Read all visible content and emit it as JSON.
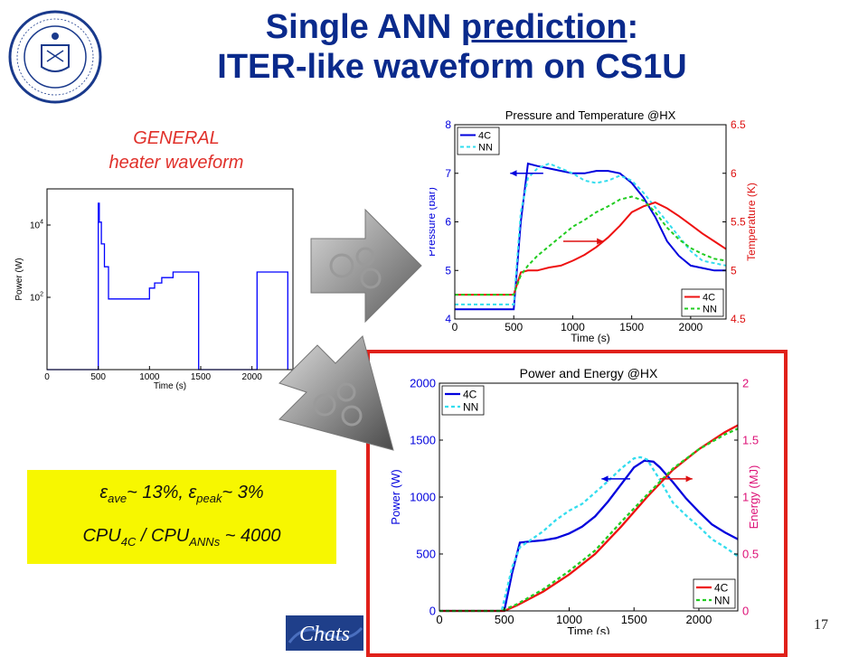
{
  "slide": {
    "title_line1_a": "Single ANN ",
    "title_line1_b": "prediction",
    "title_line1_c": ":",
    "title_line2": "ITER-like waveform on CS1U",
    "caption_line1": "GENERAL",
    "caption_line2": "heater waveform",
    "result": {
      "eps_symbol": "ε",
      "ave_sub": "ave",
      "ave_val": "~  13%, ",
      "peak_sub": "peak",
      "peak_val": "~  3%",
      "cpu": "CPU",
      "cpu_4c_sub": "4C",
      "cpu_sep": " / CPU",
      "cpu_ann_sub": "ANNs",
      "cpu_val": " ~  4000"
    },
    "footer_logo_text": "Chats",
    "page_number": "17",
    "colors": {
      "title": "#0a2a8c",
      "caption": "#e0302a",
      "frame": "#e0201a",
      "box": "#f7f700"
    }
  },
  "chart_data": [
    {
      "type": "line",
      "title": "",
      "xlabel": "Time (s)",
      "ylabel": "Power (W)",
      "xlim": [
        0,
        2400
      ],
      "ylog": true,
      "ylim": [
        1,
        100000
      ],
      "xticks": [
        "0",
        "500",
        "1000",
        "1500",
        "2000"
      ],
      "yticks": [
        "10^4",
        "10^2"
      ],
      "series": [
        {
          "color": "#0000ff",
          "x": [
            0,
            500,
            500,
            510,
            510,
            530,
            530,
            560,
            560,
            600,
            600,
            1000,
            1000,
            1050,
            1050,
            1120,
            1120,
            1230,
            1230,
            1480,
            1480,
            2050,
            2050,
            2350,
            2350
          ],
          "y": [
            1,
            1,
            40000,
            40000,
            12000,
            12000,
            3000,
            3000,
            700,
            700,
            90,
            90,
            180,
            180,
            250,
            250,
            350,
            350,
            500,
            500,
            1,
            1,
            500,
            500,
            1
          ]
        }
      ]
    },
    {
      "type": "line",
      "title": "Pressure and Temperature @HX",
      "xlabel": "Time (s)",
      "ylabel": "Pressure (bar)",
      "y2label": "Temperature (K)",
      "xlim": [
        0,
        2300
      ],
      "ylim": [
        4,
        8
      ],
      "y2lim": [
        4.5,
        6.5
      ],
      "xticks": [
        "0",
        "500",
        "1000",
        "1500",
        "2000"
      ],
      "yticks": [
        "4",
        "5",
        "6",
        "7",
        "8"
      ],
      "y2ticks": [
        "4.5",
        "5",
        "5.5",
        "6",
        "6.5"
      ],
      "legend_left": [
        "4C",
        "NN"
      ],
      "legend_right": [
        "4C",
        "NN"
      ],
      "series": [
        {
          "name": "4C",
          "axis": "left",
          "color": "#0000dd",
          "dash": false,
          "x": [
            0,
            450,
            470,
            500,
            560,
            620,
            700,
            800,
            900,
            1000,
            1100,
            1200,
            1300,
            1400,
            1500,
            1600,
            1700,
            1800,
            1900,
            2000,
            2100,
            2200,
            2300
          ],
          "y": [
            4.2,
            4.2,
            4.2,
            4.2,
            6.0,
            7.2,
            7.15,
            7.1,
            7.05,
            7.0,
            7.0,
            7.05,
            7.05,
            7.0,
            6.8,
            6.5,
            6.1,
            5.6,
            5.3,
            5.1,
            5.05,
            5.0,
            5.0
          ]
        },
        {
          "name": "NN",
          "axis": "left",
          "color": "#33ddee",
          "dash": true,
          "x": [
            0,
            450,
            500,
            560,
            620,
            700,
            800,
            900,
            1000,
            1100,
            1200,
            1300,
            1400,
            1500,
            1600,
            1700,
            1800,
            1900,
            2000,
            2100,
            2200,
            2300
          ],
          "y": [
            4.3,
            4.3,
            4.3,
            6.2,
            6.9,
            7.1,
            7.2,
            7.1,
            7.0,
            6.85,
            6.8,
            6.85,
            6.95,
            6.85,
            6.6,
            6.3,
            6.0,
            5.7,
            5.4,
            5.2,
            5.15,
            5.1
          ]
        },
        {
          "name": "4C",
          "axis": "right",
          "color": "#ee1111",
          "dash": false,
          "x": [
            0,
            450,
            500,
            560,
            620,
            700,
            800,
            900,
            1000,
            1100,
            1200,
            1300,
            1400,
            1500,
            1600,
            1700,
            1800,
            1900,
            2000,
            2100,
            2200,
            2300
          ],
          "y": [
            4.75,
            4.75,
            4.75,
            4.98,
            5.0,
            5.0,
            5.03,
            5.05,
            5.1,
            5.16,
            5.24,
            5.34,
            5.46,
            5.6,
            5.66,
            5.7,
            5.64,
            5.56,
            5.47,
            5.38,
            5.3,
            5.22
          ]
        },
        {
          "name": "NN",
          "axis": "right",
          "color": "#22cc22",
          "dash": true,
          "x": [
            0,
            450,
            500,
            560,
            620,
            700,
            800,
            900,
            1000,
            1100,
            1200,
            1300,
            1400,
            1500,
            1600,
            1700,
            1800,
            1900,
            2000,
            2100,
            2200,
            2300
          ],
          "y": [
            4.75,
            4.75,
            4.75,
            4.95,
            5.05,
            5.15,
            5.25,
            5.35,
            5.45,
            5.52,
            5.6,
            5.66,
            5.73,
            5.76,
            5.72,
            5.6,
            5.44,
            5.32,
            5.23,
            5.17,
            5.12,
            5.1
          ]
        }
      ]
    },
    {
      "type": "line",
      "title": "Power and Energy @HX",
      "xlabel": "Time (s)",
      "ylabel": "Power (W)",
      "y2label": "Energy (MJ)",
      "xlim": [
        0,
        2300
      ],
      "ylim": [
        0,
        2000
      ],
      "y2lim": [
        0,
        2
      ],
      "xticks": [
        "0",
        "500",
        "1000",
        "1500",
        "2000"
      ],
      "yticks": [
        "0",
        "500",
        "1000",
        "1500",
        "2000"
      ],
      "y2ticks": [
        "0",
        "0.5",
        "1",
        "1.5",
        "2"
      ],
      "legend_left": [
        "4C",
        "NN"
      ],
      "legend_right": [
        "4C",
        "NN"
      ],
      "series": [
        {
          "name": "4C",
          "axis": "left",
          "color": "#0000dd",
          "dash": false,
          "x": [
            0,
            500,
            560,
            620,
            700,
            800,
            900,
            1000,
            1100,
            1200,
            1300,
            1400,
            1500,
            1580,
            1650,
            1700,
            1800,
            1900,
            2000,
            2100,
            2200,
            2300
          ],
          "y": [
            0,
            0,
            330,
            600,
            610,
            620,
            640,
            680,
            740,
            830,
            960,
            1110,
            1260,
            1320,
            1310,
            1260,
            1130,
            990,
            870,
            760,
            690,
            630
          ]
        },
        {
          "name": "NN",
          "axis": "left",
          "color": "#33ddee",
          "dash": true,
          "x": [
            0,
            430,
            480,
            560,
            620,
            700,
            800,
            900,
            1000,
            1100,
            1200,
            1300,
            1400,
            1500,
            1550,
            1600,
            1700,
            1800,
            1900,
            2000,
            2100,
            2200,
            2300
          ],
          "y": [
            0,
            0,
            0,
            380,
            560,
            620,
            700,
            800,
            880,
            940,
            1040,
            1140,
            1250,
            1340,
            1350,
            1330,
            1150,
            950,
            840,
            740,
            630,
            560,
            480
          ]
        },
        {
          "name": "4C",
          "axis": "right",
          "color": "#ee1111",
          "dash": false,
          "x": [
            0,
            500,
            600,
            800,
            1000,
            1200,
            1400,
            1600,
            1800,
            2000,
            2200,
            2300
          ],
          "y": [
            0,
            0,
            0.05,
            0.17,
            0.32,
            0.5,
            0.74,
            1.0,
            1.24,
            1.42,
            1.57,
            1.63
          ]
        },
        {
          "name": "NN",
          "axis": "right",
          "color": "#22cc22",
          "dash": true,
          "x": [
            0,
            480,
            600,
            800,
            1000,
            1200,
            1400,
            1600,
            1800,
            2000,
            2200,
            2300
          ],
          "y": [
            0,
            0,
            0.06,
            0.19,
            0.35,
            0.53,
            0.78,
            1.02,
            1.25,
            1.42,
            1.55,
            1.6
          ]
        }
      ]
    }
  ]
}
